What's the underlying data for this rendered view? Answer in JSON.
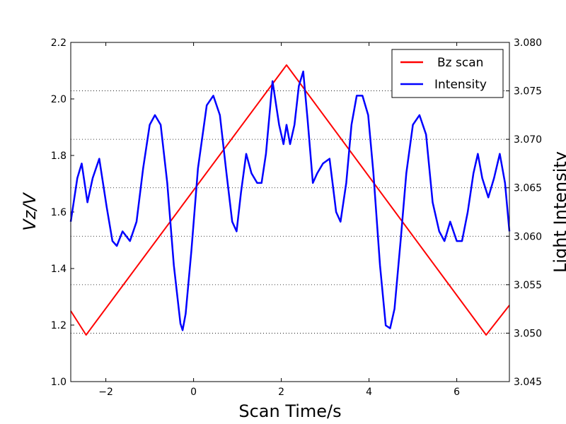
{
  "chart_data": {
    "type": "line",
    "xlabel": "Scan Time/s",
    "ylabel_left": "Vz/V",
    "ylabel_right": "Light Intensity",
    "xlim": [
      -2.8,
      7.2
    ],
    "ylim_left": [
      1.0,
      2.2
    ],
    "ylim_right": [
      3.045,
      3.08
    ],
    "x_ticks": [
      "-2",
      "0",
      "2",
      "4",
      "6"
    ],
    "x_tick_values": [
      -2,
      0,
      2,
      4,
      6
    ],
    "y_left_ticks": [
      "1.0",
      "1.2",
      "1.4",
      "1.6",
      "1.8",
      "2.0",
      "2.2"
    ],
    "y_left_tick_values": [
      1.0,
      1.2,
      1.4,
      1.6,
      1.8,
      2.0,
      2.2
    ],
    "y_right_ticks": [
      "3.045",
      "3.050",
      "3.055",
      "3.060",
      "3.065",
      "3.070",
      "3.075",
      "3.080"
    ],
    "y_right_tick_values": [
      3.045,
      3.05,
      3.055,
      3.06,
      3.065,
      3.07,
      3.075,
      3.08
    ],
    "grid": "horizontal dotted on right axis",
    "legend_position": "top-right",
    "series": [
      {
        "name": "Bz scan",
        "color": "#ff0000",
        "axis": "left",
        "x": [
          -2.8,
          -2.45,
          2.12,
          6.67,
          7.2
        ],
        "y": [
          1.25,
          1.165,
          2.12,
          1.165,
          1.27
        ]
      },
      {
        "name": "Intensity",
        "color": "#0000ff",
        "axis": "right",
        "x": [
          -2.8,
          -2.65,
          -2.55,
          -2.42,
          -2.3,
          -2.15,
          -1.98,
          -1.85,
          -1.75,
          -1.62,
          -1.45,
          -1.3,
          -1.15,
          -1.0,
          -0.88,
          -0.75,
          -0.6,
          -0.45,
          -0.3,
          -0.25,
          -0.18,
          -0.05,
          0.1,
          0.3,
          0.45,
          0.6,
          0.75,
          0.88,
          0.98,
          1.08,
          1.2,
          1.32,
          1.45,
          1.55,
          1.65,
          1.8,
          1.95,
          2.05,
          2.12,
          2.2,
          2.3,
          2.4,
          2.5,
          2.6,
          2.72,
          2.82,
          2.95,
          3.1,
          3.25,
          3.35,
          3.48,
          3.6,
          3.72,
          3.85,
          3.98,
          4.1,
          4.25,
          4.38,
          4.48,
          4.58,
          4.72,
          4.85,
          5.0,
          5.15,
          5.3,
          5.45,
          5.6,
          5.72,
          5.85,
          6.0,
          6.12,
          6.25,
          6.38,
          6.48,
          6.58,
          6.72,
          6.85,
          6.98,
          7.1,
          7.2
        ],
        "y": [
          3.0615,
          3.066,
          3.0675,
          3.0635,
          3.066,
          3.068,
          3.063,
          3.0595,
          3.059,
          3.0605,
          3.0595,
          3.0615,
          3.067,
          3.0715,
          3.0725,
          3.0715,
          3.0655,
          3.057,
          3.051,
          3.0503,
          3.052,
          3.0585,
          3.067,
          3.0735,
          3.0745,
          3.0725,
          3.0665,
          3.0615,
          3.0605,
          3.0645,
          3.0685,
          3.0665,
          3.0655,
          3.0655,
          3.0685,
          3.076,
          3.0715,
          3.0695,
          3.0715,
          3.0695,
          3.0715,
          3.0755,
          3.077,
          3.072,
          3.0655,
          3.0665,
          3.0675,
          3.068,
          3.0625,
          3.0615,
          3.0655,
          3.0715,
          3.0745,
          3.0745,
          3.0725,
          3.0665,
          3.057,
          3.0508,
          3.0505,
          3.0525,
          3.0595,
          3.0665,
          3.0715,
          3.0725,
          3.0705,
          3.0635,
          3.0605,
          3.0595,
          3.0615,
          3.0595,
          3.0595,
          3.0625,
          3.0665,
          3.0685,
          3.066,
          3.064,
          3.066,
          3.0685,
          3.0655,
          3.0605
        ]
      }
    ]
  }
}
